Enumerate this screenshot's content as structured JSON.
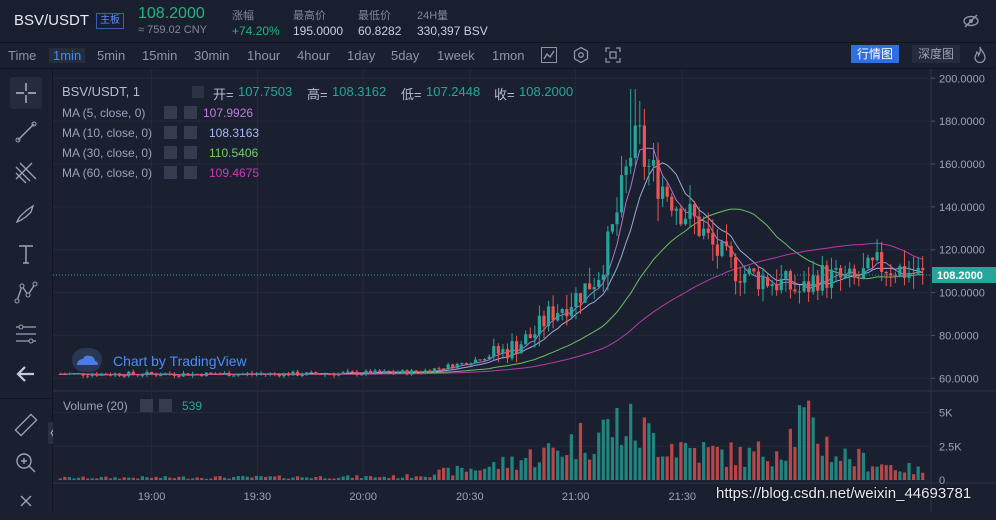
{
  "header": {
    "pair": "BSV/USDT",
    "board": "主板",
    "price": "108.2000",
    "cny": "≈ 759.02 CNY",
    "stats": [
      {
        "label": "涨幅",
        "value": "+74.20%"
      },
      {
        "label": "最高价",
        "value": "195.0000"
      },
      {
        "label": "最低价",
        "value": "60.8282"
      },
      {
        "label": "24H量",
        "value": "330,397 BSV"
      }
    ]
  },
  "toolbar": {
    "timeframes": [
      "Time",
      "1min",
      "5min",
      "15min",
      "30min",
      "1hour",
      "4hour",
      "1day",
      "5day",
      "1week",
      "1mon"
    ],
    "active": "1min",
    "view_buttons": [
      "行情图",
      "深度图"
    ]
  },
  "legend": {
    "title": "BSV/USDT, 1",
    "ohlc": [
      {
        "label": "开=",
        "value": "107.7503"
      },
      {
        "label": "高=",
        "value": "108.3162"
      },
      {
        "label": "低=",
        "value": "107.2448"
      },
      {
        "label": "收=",
        "value": "108.2000"
      }
    ],
    "ma": [
      {
        "label": "MA (5, close, 0)",
        "value": "107.9926",
        "color": "#c57adb"
      },
      {
        "label": "MA (10, close, 0)",
        "value": "108.3163",
        "color": "#a9b8f0"
      },
      {
        "label": "MA (30, close, 0)",
        "value": "110.5406",
        "color": "#74cf6b"
      },
      {
        "label": "MA (60, close, 0)",
        "value": "109.4675",
        "color": "#c93cb5"
      }
    ],
    "volume_label": "Volume (20)",
    "volume_value": "539"
  },
  "watermark": "Chart by TradingView",
  "credit": "https://blog.csdn.net/weixin_44693781",
  "colors": {
    "up": "#26a69a",
    "down": "#ef5350",
    "accent": "#3a8ff5",
    "bg": "#1b2030"
  },
  "chart_data": {
    "type": "candlestick",
    "x_ticks": [
      "19:00",
      "19:30",
      "20:00",
      "20:30",
      "21:00",
      "21:30"
    ],
    "price_ticks": [
      "200.0000",
      "180.0000",
      "160.0000",
      "140.0000",
      "120.0000",
      "100.0000",
      "80.0000",
      "60.0000"
    ],
    "last_price": "108.2000",
    "volume_ticks": [
      "5K",
      "2.5K",
      "0"
    ],
    "ylim": [
      55,
      202
    ],
    "price_path": [
      [
        0,
        62
      ],
      [
        0.3,
        62
      ],
      [
        0.42,
        63
      ],
      [
        0.47,
        67
      ],
      [
        0.52,
        73
      ],
      [
        0.55,
        80
      ],
      [
        0.57,
        90
      ],
      [
        0.6,
        98
      ],
      [
        0.625,
        108
      ],
      [
        0.64,
        125
      ],
      [
        0.655,
        150
      ],
      [
        0.67,
        178
      ],
      [
        0.68,
        160
      ],
      [
        0.7,
        150
      ],
      [
        0.72,
        140
      ],
      [
        0.74,
        132
      ],
      [
        0.76,
        120
      ],
      [
        0.78,
        112
      ],
      [
        0.8,
        108
      ],
      [
        0.84,
        104
      ],
      [
        0.86,
        100
      ],
      [
        0.88,
        108
      ],
      [
        0.92,
        105
      ],
      [
        0.95,
        113
      ],
      [
        0.98,
        110
      ],
      [
        1,
        108
      ]
    ],
    "spike_high": 195,
    "volume_profile": [
      [
        0,
        200
      ],
      [
        0.4,
        300
      ],
      [
        0.5,
        1200
      ],
      [
        0.57,
        2600
      ],
      [
        0.62,
        4200
      ],
      [
        0.65,
        5200
      ],
      [
        0.7,
        3600
      ],
      [
        0.75,
        2600
      ],
      [
        0.8,
        2200
      ],
      [
        0.84,
        3200
      ],
      [
        0.86,
        5600
      ],
      [
        0.9,
        2400
      ],
      [
        0.95,
        1500
      ],
      [
        1,
        800
      ]
    ],
    "volume_max": 6000
  }
}
